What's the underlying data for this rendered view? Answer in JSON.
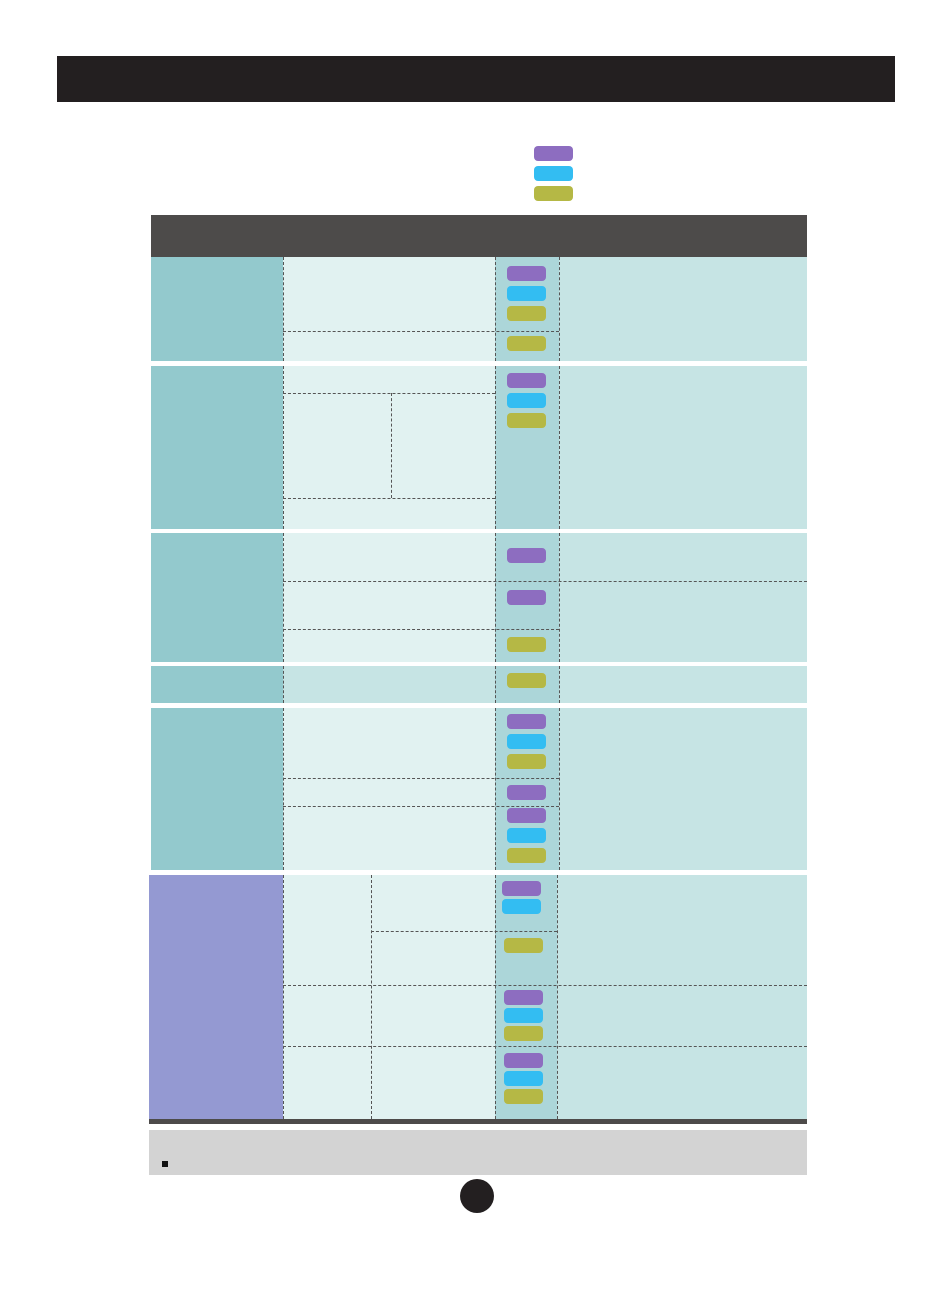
{
  "colors": {
    "title_bar": "#231f20",
    "header": "#4d4b4a",
    "category": "#93c9cd",
    "category_last": "#9499d2",
    "mid_cell": "#e1f2f1",
    "badge_col": "#acd6d9",
    "desc_cell": "#c6e4e4",
    "purple": "#8d6dc0",
    "cyan": "#33bdf2",
    "olive": "#b5b845",
    "note_box": "#d3d3d3",
    "page_circle": "#231f20"
  },
  "legend": [
    "purple",
    "cyan",
    "olive"
  ],
  "table": {
    "rows": [
      {
        "mid_badges": [
          [
            "purple",
            "cyan",
            "olive"
          ],
          [
            "olive"
          ]
        ]
      },
      {
        "mid_badges": [
          [
            "purple",
            "cyan",
            "olive"
          ]
        ]
      },
      {
        "mid_badges": [
          [
            "purple"
          ],
          [
            "purple"
          ],
          [
            "olive"
          ]
        ]
      },
      {
        "mid_badges": [
          [
            "olive"
          ]
        ]
      },
      {
        "mid_badges": [
          [
            "purple",
            "cyan",
            "olive"
          ],
          [
            "purple"
          ],
          [
            "purple",
            "cyan",
            "olive"
          ]
        ]
      },
      {
        "mid_badges": [
          [
            "purple",
            "cyan"
          ],
          [
            "olive"
          ],
          [
            "purple",
            "cyan",
            "olive"
          ],
          [
            "purple",
            "cyan",
            "olive"
          ]
        ]
      }
    ]
  }
}
